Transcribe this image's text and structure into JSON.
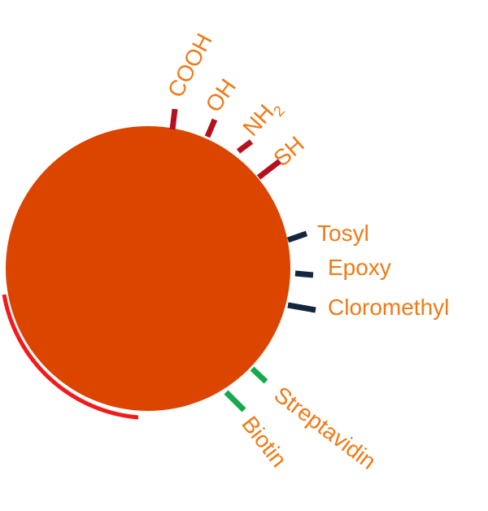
{
  "colors": {
    "sphere": "#db4500",
    "label": "#f07a16",
    "group_red": "#b5101d",
    "group_navy": "#13263f",
    "group_green": "#17a84b",
    "arc": "#f21a1a"
  },
  "groups_red": {
    "cooh": "COOH",
    "oh": "OH",
    "nh2_main": "NH",
    "nh2_sub": "2",
    "sh": "SH"
  },
  "groups_navy": {
    "tosyl": "Tosyl",
    "epoxy": "Epoxy",
    "cloromethyl": "Cloromethyl"
  },
  "groups_green": {
    "streptavidin": "Streptavidin",
    "biotin": "Biotin"
  }
}
